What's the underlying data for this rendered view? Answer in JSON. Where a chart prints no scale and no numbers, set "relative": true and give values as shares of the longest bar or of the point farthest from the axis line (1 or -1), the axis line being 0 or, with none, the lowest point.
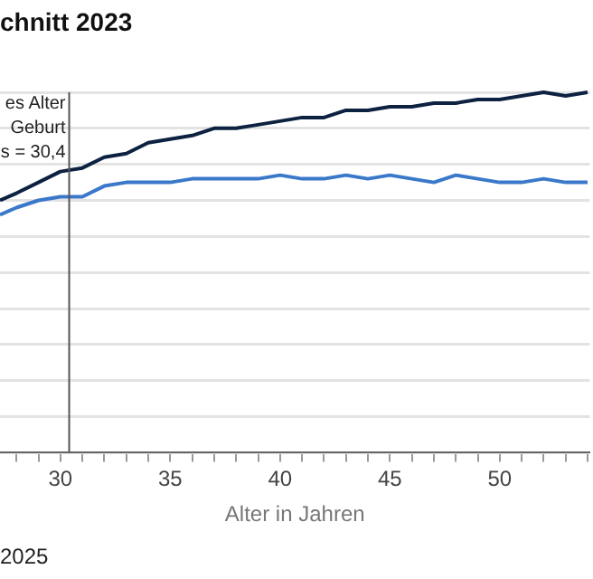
{
  "chart_data": {
    "type": "line",
    "title": "chnitt 2023",
    "xlabel": "Alter in Jahren",
    "relative": true,
    "grid": "y",
    "marker": "none",
    "line_style": "solid",
    "legend": false,
    "x": [
      27.25,
      28,
      29,
      30,
      31,
      32,
      33,
      34,
      35,
      36,
      37,
      38,
      39,
      40,
      41,
      42,
      43,
      44,
      45,
      46,
      47,
      48,
      49,
      50,
      51,
      52,
      53,
      54
    ],
    "xlim": [
      27.25,
      54.1
    ],
    "xticks": [
      {
        "value": 28,
        "label": null
      },
      {
        "value": 29,
        "label": null
      },
      30,
      {
        "value": 31,
        "label": null
      },
      {
        "value": 32,
        "label": null
      },
      {
        "value": 33,
        "label": null
      },
      {
        "value": 34,
        "label": null
      },
      35,
      {
        "value": 36,
        "label": null
      },
      {
        "value": 37,
        "label": null
      },
      {
        "value": 38,
        "label": null
      },
      {
        "value": 39,
        "label": null
      },
      40,
      {
        "value": 41,
        "label": null
      },
      {
        "value": 42,
        "label": null
      },
      {
        "value": 43,
        "label": null
      },
      {
        "value": 44,
        "label": null
      },
      45,
      {
        "value": 46,
        "label": null
      },
      {
        "value": 47,
        "label": null
      },
      {
        "value": 48,
        "label": null
      },
      {
        "value": 49,
        "label": null
      },
      50,
      {
        "value": 51,
        "label": null
      },
      {
        "value": 52,
        "label": null
      },
      {
        "value": 53,
        "label": null
      },
      {
        "value": 54,
        "label": null
      }
    ],
    "series": [
      {
        "color": "#0d2240",
        "values": [
          0.7,
          0.72,
          0.75,
          0.78,
          0.79,
          0.82,
          0.83,
          0.86,
          0.87,
          0.88,
          0.9,
          0.9,
          0.91,
          0.92,
          0.93,
          0.93,
          0.95,
          0.95,
          0.96,
          0.96,
          0.97,
          0.97,
          0.98,
          0.98,
          0.99,
          1.0,
          0.99,
          1.0
        ]
      },
      {
        "color": "#3a78c9",
        "values": [
          0.66,
          0.68,
          0.7,
          0.71,
          0.71,
          0.74,
          0.75,
          0.75,
          0.75,
          0.76,
          0.76,
          0.76,
          0.76,
          0.77,
          0.76,
          0.76,
          0.77,
          0.76,
          0.77,
          0.76,
          0.75,
          0.77,
          0.76,
          0.75,
          0.75,
          0.76,
          0.75,
          0.75
        ]
      }
    ],
    "ref_lines": [
      {
        "axis": "x",
        "value": 30.4,
        "label": "es Alter\nGeburt\ns = 30,4",
        "color": "#555555"
      }
    ],
    "annotations": [
      "2025"
    ]
  }
}
